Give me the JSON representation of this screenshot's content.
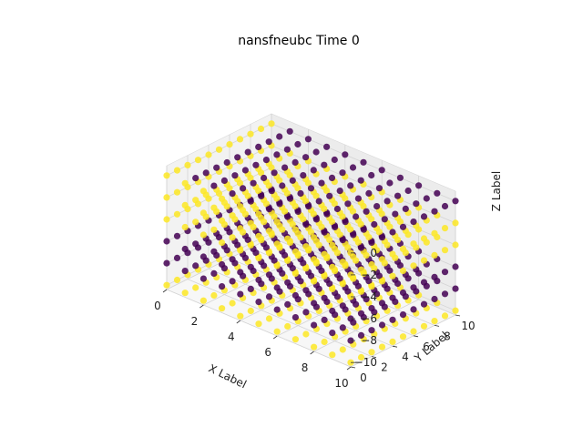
{
  "chart_data": {
    "type": "scatter",
    "title": "nansfneubc Time 0",
    "xlabel": "X Label",
    "ylabel": "Y Label",
    "zlabel": "Z Label",
    "xlim": [
      0,
      10
    ],
    "ylim": [
      0,
      10
    ],
    "zlim": [
      -10,
      0
    ],
    "x_ticks": [
      "0",
      "2",
      "4",
      "6",
      "8",
      "10"
    ],
    "y_ticks": [
      "0",
      "2",
      "4",
      "6",
      "8",
      "10"
    ],
    "z_ticks": [
      "0",
      "−2",
      "−4",
      "−6",
      "−8",
      "−10"
    ],
    "grid": true,
    "colors": {
      "high": "#fde725",
      "low": "#440154"
    },
    "grid_points": {
      "x": [
        0,
        10
      ],
      "y": [
        0,
        10
      ],
      "step": 1
    },
    "series": [
      {
        "z": 0,
        "color_value": "low",
        "edge_color_value": "high"
      },
      {
        "z": -2,
        "color_value": "high"
      },
      {
        "z": -4,
        "color_value": "high"
      },
      {
        "z": -6,
        "color_value": "low"
      },
      {
        "z": -8,
        "color_value": "low"
      },
      {
        "z": -10,
        "color_value": "high"
      }
    ]
  }
}
